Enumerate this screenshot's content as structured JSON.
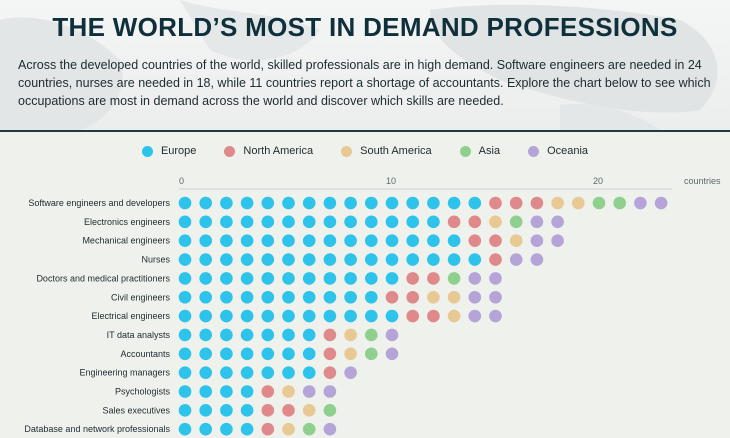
{
  "title": "THE WORLD’S MOST IN DEMAND PROFESSIONS",
  "description": "Across the developed countries of the world, skilled professionals are in high demand. Software engineers are needed in 24 countries, nurses are needed in 18, while 11 countries report a shortage of accountants. Explore the chart below to see which occupations are most in demand across the world and discover which skills are needed.",
  "colors": {
    "Europe": "#2ec3ea",
    "North America": "#e0898a",
    "South America": "#e8c893",
    "Asia": "#8fd08f",
    "Oceania": "#b5a4d8"
  },
  "chart_data": {
    "type": "dot-matrix",
    "unit_label": "countries",
    "x_ticks": [
      0,
      10,
      20
    ],
    "legend": [
      "Europe",
      "North America",
      "South America",
      "Asia",
      "Oceania"
    ],
    "rows": [
      {
        "label": "Software engineers and developers",
        "Europe": 15,
        "North America": 3,
        "South America": 2,
        "Asia": 2,
        "Oceania": 2
      },
      {
        "label": "Electronics engineers",
        "Europe": 13,
        "North America": 2,
        "South America": 1,
        "Asia": 1,
        "Oceania": 2
      },
      {
        "label": "Mechanical engineers",
        "Europe": 14,
        "North America": 2,
        "South America": 1,
        "Asia": 0,
        "Oceania": 2
      },
      {
        "label": "Nurses",
        "Europe": 15,
        "North America": 1,
        "South America": 0,
        "Asia": 0,
        "Oceania": 2
      },
      {
        "label": "Doctors and medical practitioners",
        "Europe": 11,
        "North America": 2,
        "South America": 0,
        "Asia": 1,
        "Oceania": 2
      },
      {
        "label": "Civil engineers",
        "Europe": 10,
        "North America": 2,
        "South America": 2,
        "Asia": 0,
        "Oceania": 2
      },
      {
        "label": "Electrical engineers",
        "Europe": 11,
        "North America": 2,
        "South America": 1,
        "Asia": 0,
        "Oceania": 2
      },
      {
        "label": "IT data analysts",
        "Europe": 7,
        "North America": 1,
        "South America": 1,
        "Asia": 1,
        "Oceania": 1
      },
      {
        "label": "Accountants",
        "Europe": 7,
        "North America": 1,
        "South America": 1,
        "Asia": 1,
        "Oceania": 1
      },
      {
        "label": "Engineering managers",
        "Europe": 7,
        "North America": 1,
        "South America": 0,
        "Asia": 0,
        "Oceania": 1
      },
      {
        "label": "Psychologists",
        "Europe": 4,
        "North America": 1,
        "South America": 1,
        "Asia": 0,
        "Oceania": 2
      },
      {
        "label": "Sales executives",
        "Europe": 4,
        "North America": 2,
        "South America": 1,
        "Asia": 1,
        "Oceania": 0
      },
      {
        "label": "Database and network professionals",
        "Europe": 4,
        "North America": 1,
        "South America": 1,
        "Asia": 1,
        "Oceania": 1
      }
    ]
  }
}
